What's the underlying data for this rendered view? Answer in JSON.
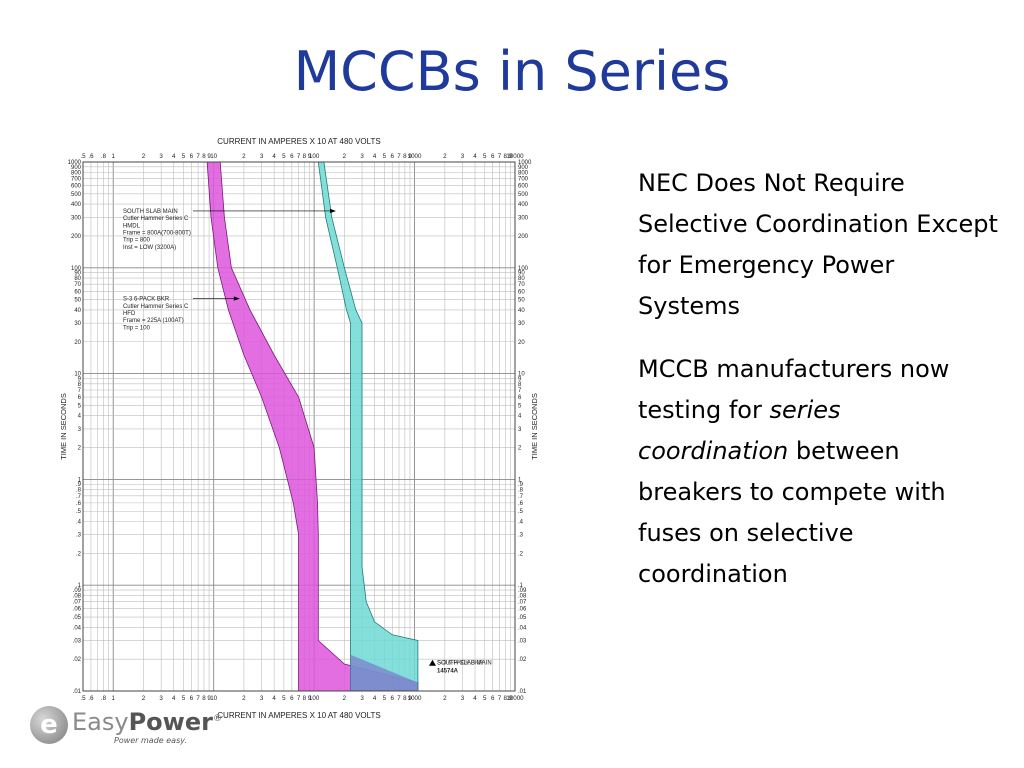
{
  "slide": {
    "title": "MCCBs in Series"
  },
  "right_text": {
    "p1": "NEC  Does Not Require Selective Coordination Except for Emergency Power Systems",
    "p2_a": "MCCB manufacturers now testing for ",
    "p2_em": "series coordination",
    "p2_b": " between breakers to compete with fuses on selective coordination"
  },
  "logo": {
    "part1": "Easy",
    "part2": "Power",
    "reg": "®",
    "tagline": "Power made easy."
  },
  "chart_data": {
    "type": "time-current-curve",
    "x_axis_label": "CURRENT IN AMPERES X 10 AT 480 VOLTS",
    "y_axis_label": "TIME IN SECONDS",
    "x_scale": "log",
    "y_scale": "log",
    "xlim": [
      0.5,
      10000
    ],
    "ylim": [
      0.01,
      1000
    ],
    "x_tick_labels": [
      {
        "v": 0.5,
        "t": ".5"
      },
      {
        "v": 0.6,
        "t": ".6"
      },
      {
        "v": 0.8,
        "t": ".8"
      },
      {
        "v": 1,
        "t": "1"
      },
      {
        "v": 2,
        "t": "2"
      },
      {
        "v": 3,
        "t": "3"
      },
      {
        "v": 4,
        "t": "4"
      },
      {
        "v": 5,
        "t": "5"
      },
      {
        "v": 6,
        "t": "6"
      },
      {
        "v": 7,
        "t": "7"
      },
      {
        "v": 8,
        "t": "8"
      },
      {
        "v": 9,
        "t": "9"
      },
      {
        "v": 10,
        "t": "10"
      },
      {
        "v": 20,
        "t": "2"
      },
      {
        "v": 30,
        "t": "3"
      },
      {
        "v": 40,
        "t": "4"
      },
      {
        "v": 50,
        "t": "5"
      },
      {
        "v": 60,
        "t": "6"
      },
      {
        "v": 70,
        "t": "7"
      },
      {
        "v": 80,
        "t": "8"
      },
      {
        "v": 90,
        "t": "9"
      },
      {
        "v": 100,
        "t": "100"
      },
      {
        "v": 200,
        "t": "2"
      },
      {
        "v": 300,
        "t": "3"
      },
      {
        "v": 400,
        "t": "4"
      },
      {
        "v": 500,
        "t": "5"
      },
      {
        "v": 600,
        "t": "6"
      },
      {
        "v": 700,
        "t": "7"
      },
      {
        "v": 800,
        "t": "8"
      },
      {
        "v": 900,
        "t": "9"
      },
      {
        "v": 1000,
        "t": "1000"
      },
      {
        "v": 2000,
        "t": "2"
      },
      {
        "v": 3000,
        "t": "3"
      },
      {
        "v": 4000,
        "t": "4"
      },
      {
        "v": 5000,
        "t": "5"
      },
      {
        "v": 6000,
        "t": "6"
      },
      {
        "v": 7000,
        "t": "7"
      },
      {
        "v": 8000,
        "t": "8"
      },
      {
        "v": 9000,
        "t": "9"
      },
      {
        "v": 10000,
        "t": "10000"
      }
    ],
    "y_tick_labels": [
      {
        "v": 1000,
        "t": "1000"
      },
      {
        "v": 900,
        "t": "900"
      },
      {
        "v": 800,
        "t": "800"
      },
      {
        "v": 700,
        "t": "700"
      },
      {
        "v": 600,
        "t": "600"
      },
      {
        "v": 500,
        "t": "500"
      },
      {
        "v": 400,
        "t": "400"
      },
      {
        "v": 300,
        "t": "300"
      },
      {
        "v": 200,
        "t": "200"
      },
      {
        "v": 100,
        "t": "100"
      },
      {
        "v": 90,
        "t": "90"
      },
      {
        "v": 80,
        "t": "80"
      },
      {
        "v": 70,
        "t": "70"
      },
      {
        "v": 60,
        "t": "60"
      },
      {
        "v": 50,
        "t": "50"
      },
      {
        "v": 40,
        "t": "40"
      },
      {
        "v": 30,
        "t": "30"
      },
      {
        "v": 20,
        "t": "20"
      },
      {
        "v": 10,
        "t": "10"
      },
      {
        "v": 9,
        "t": "9"
      },
      {
        "v": 8,
        "t": "8"
      },
      {
        "v": 7,
        "t": "7"
      },
      {
        "v": 6,
        "t": "6"
      },
      {
        "v": 5,
        "t": "5"
      },
      {
        "v": 4,
        "t": "4"
      },
      {
        "v": 3,
        "t": "3"
      },
      {
        "v": 2,
        "t": "2"
      },
      {
        "v": 1,
        "t": "1"
      },
      {
        "v": 0.9,
        "t": ".9"
      },
      {
        "v": 0.8,
        "t": ".8"
      },
      {
        "v": 0.7,
        "t": ".7"
      },
      {
        "v": 0.6,
        "t": ".6"
      },
      {
        "v": 0.5,
        "t": ".5"
      },
      {
        "v": 0.4,
        "t": ".4"
      },
      {
        "v": 0.3,
        "t": ".3"
      },
      {
        "v": 0.2,
        "t": ".2"
      },
      {
        "v": 0.1,
        "t": ".1"
      },
      {
        "v": 0.09,
        "t": ".09"
      },
      {
        "v": 0.08,
        "t": ".08"
      },
      {
        "v": 0.07,
        "t": ".07"
      },
      {
        "v": 0.06,
        "t": ".06"
      },
      {
        "v": 0.05,
        "t": ".05"
      },
      {
        "v": 0.04,
        "t": ".04"
      },
      {
        "v": 0.03,
        "t": ".03"
      },
      {
        "v": 0.02,
        "t": ".02"
      },
      {
        "v": 0.01,
        "t": ".01"
      }
    ],
    "bands": [
      {
        "name": "S-3 6-PACK BKR",
        "color": "#dd55dd",
        "stroke": "#7a1a7a",
        "left": [
          [
            8.6,
            1000
          ],
          [
            9.4,
            300
          ],
          [
            11,
            100
          ],
          [
            14,
            40
          ],
          [
            20,
            15
          ],
          [
            30,
            6
          ],
          [
            45,
            2
          ],
          [
            62,
            0.6
          ],
          [
            70,
            0.3
          ],
          [
            70,
            0.01
          ]
        ],
        "right": [
          [
            11.6,
            1000
          ],
          [
            12.8,
            300
          ],
          [
            15,
            100
          ],
          [
            23,
            40
          ],
          [
            40,
            15
          ],
          [
            70,
            6
          ],
          [
            100,
            2
          ],
          [
            108,
            0.6
          ],
          [
            110,
            0.3
          ],
          [
            110,
            0.03
          ],
          [
            200,
            0.018
          ],
          [
            1080,
            0.012
          ],
          [
            1080,
            0.01
          ]
        ]
      },
      {
        "name": "SOUTH SLAB MAIN",
        "color": "#6ed8d2",
        "stroke": "#1a7f7a",
        "left": [
          [
            110,
            1000
          ],
          [
            130,
            300
          ],
          [
            170,
            100
          ],
          [
            210,
            40
          ],
          [
            230,
            30
          ],
          [
            230,
            0.01
          ]
        ],
        "right": [
          [
            125,
            1000
          ],
          [
            150,
            300
          ],
          [
            200,
            100
          ],
          [
            260,
            40
          ],
          [
            300,
            30
          ],
          [
            300,
            0.15
          ],
          [
            330,
            0.07
          ],
          [
            400,
            0.045
          ],
          [
            600,
            0.034
          ],
          [
            1080,
            0.03
          ],
          [
            1080,
            0.01
          ]
        ]
      }
    ],
    "labels": [
      {
        "lines": [
          "SOUTH SLAB MAIN",
          "Cutler Hammer Series C",
          "HMDL",
          "Frame = 800A(700-800T)",
          "Trip = 800",
          "Inst = LOW (3200A)"
        ],
        "x": 1.25,
        "y": 330,
        "arrow_to": [
          165,
          300
        ]
      },
      {
        "lines": [
          "S-3 6-PACK BKR",
          "Cutler Hammer Series C",
          "HFD",
          "Frame = 225A (100AT)",
          "Trip = 100"
        ],
        "x": 1.25,
        "y": 49,
        "arrow_to": [
          18.2,
          46
        ]
      }
    ],
    "fault_label": {
      "lines": [
        "SOUTH SLAB MAIN",
        "14574A"
      ],
      "x": 1457.4,
      "y": 0.0185,
      "overprint": "S-3 6-PACK BKR"
    }
  }
}
